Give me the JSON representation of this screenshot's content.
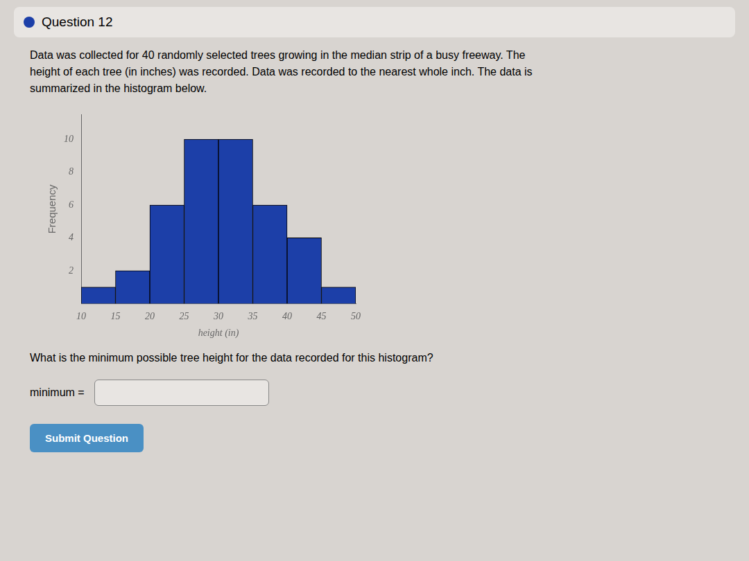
{
  "chart_data": {
    "type": "histogram",
    "title": "Question 12",
    "subtitle": [
      "Data was collected for 40 randomly selected trees growing in the median strip of a busy freeway. The",
      "height of each tree (in inches) was recorded. Data was recorded to the nearest whole inch. The data is",
      "summarized in the histogram below."
    ],
    "bins": [
      10,
      15,
      20,
      25,
      30,
      35,
      40,
      45,
      50
    ],
    "values": [
      1,
      2,
      6,
      10,
      10,
      6,
      4,
      1
    ],
    "color": "#1c3fa8",
    "xlabel": "height (in)",
    "ylabel": "Frequency",
    "xlim": [
      10,
      50
    ],
    "xticks": [
      10,
      15,
      20,
      25,
      30,
      35,
      40,
      45,
      50
    ],
    "ylim": [
      0,
      11.5
    ],
    "yticks": [
      2,
      4,
      6,
      8,
      10
    ],
    "grid": false,
    "annotations": [
      "What is the minimum possible tree height for the data recorded for this histogram?",
      "minimum =",
      "Submit Question"
    ]
  }
}
